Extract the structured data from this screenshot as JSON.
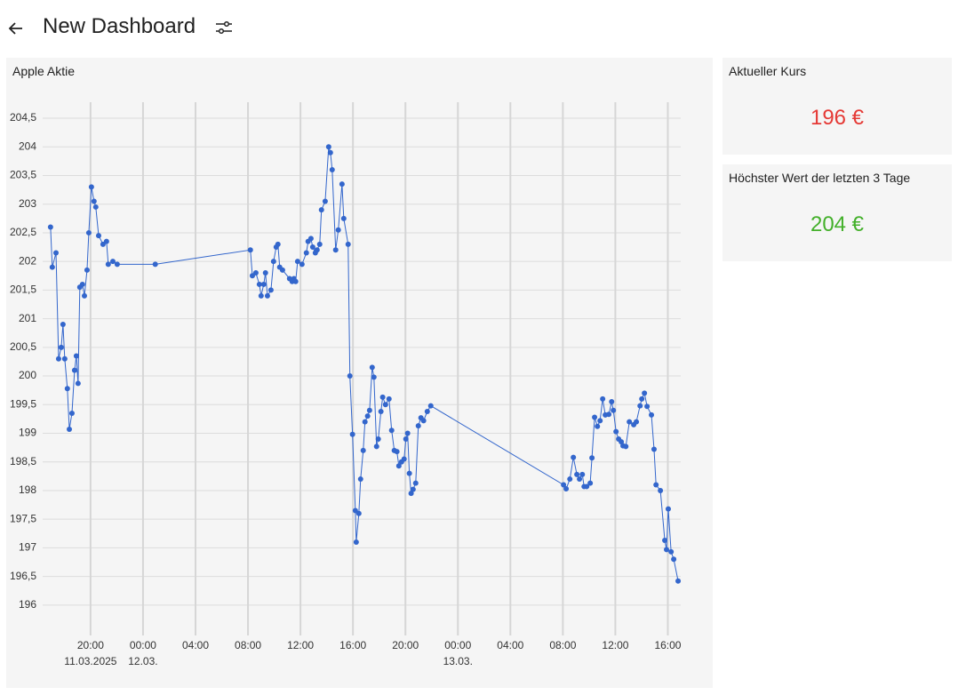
{
  "header": {
    "title": "New Dashboard"
  },
  "chart_data": {
    "type": "line",
    "title": "Apple Aktie",
    "color": "#3366cc",
    "grid": true,
    "x": [
      "2025-03-11T16:57",
      "2025-03-11T17:05",
      "2025-03-11T17:22",
      "2025-03-11T17:34",
      "2025-03-11T17:46",
      "2025-03-11T17:54",
      "2025-03-11T18:02",
      "2025-03-11T18:14",
      "2025-03-11T18:23",
      "2025-03-11T18:35",
      "2025-03-11T18:47",
      "2025-03-11T18:55",
      "2025-03-11T19:03",
      "2025-03-11T19:11",
      "2025-03-11T19:23",
      "2025-03-11T19:32",
      "2025-03-11T19:44",
      "2025-03-11T19:52",
      "2025-03-11T20:04",
      "2025-03-11T20:16",
      "2025-03-11T20:24",
      "2025-03-11T20:37",
      "2025-03-11T20:57",
      "2025-03-11T21:13",
      "2025-03-11T21:21",
      "2025-03-11T21:42",
      "2025-03-11T22:02",
      "2025-03-12T00:56",
      "2025-03-12T08:11",
      "2025-03-12T08:20",
      "2025-03-12T08:36",
      "2025-03-12T08:52",
      "2025-03-12T09:00",
      "2025-03-12T09:12",
      "2025-03-12T09:20",
      "2025-03-12T09:29",
      "2025-03-12T09:45",
      "2025-03-12T09:57",
      "2025-03-12T10:09",
      "2025-03-12T10:17",
      "2025-03-12T10:25",
      "2025-03-12T10:38",
      "2025-03-12T11:10",
      "2025-03-12T11:22",
      "2025-03-12T11:30",
      "2025-03-12T11:38",
      "2025-03-12T11:47",
      "2025-03-12T12:07",
      "2025-03-12T12:27",
      "2025-03-12T12:35",
      "2025-03-12T12:48",
      "2025-03-12T12:56",
      "2025-03-12T13:08",
      "2025-03-12T13:16",
      "2025-03-12T13:28",
      "2025-03-12T13:36",
      "2025-03-12T13:53",
      "2025-03-12T14:09",
      "2025-03-12T14:17",
      "2025-03-12T14:25",
      "2025-03-12T14:41",
      "2025-03-12T14:53",
      "2025-03-12T15:10",
      "2025-03-12T15:18",
      "2025-03-12T15:38",
      "2025-03-12T15:46",
      "2025-03-12T15:58",
      "2025-03-12T16:11",
      "2025-03-12T16:15",
      "2025-03-12T16:27",
      "2025-03-12T16:35",
      "2025-03-12T16:47",
      "2025-03-12T16:55",
      "2025-03-12T17:07",
      "2025-03-12T17:16",
      "2025-03-12T17:28",
      "2025-03-12T17:36",
      "2025-03-12T17:48",
      "2025-03-12T17:56",
      "2025-03-12T18:08",
      "2025-03-12T18:16",
      "2025-03-12T18:29",
      "2025-03-12T18:45",
      "2025-03-12T18:57",
      "2025-03-12T19:09",
      "2025-03-12T19:21",
      "2025-03-12T19:30",
      "2025-03-12T19:42",
      "2025-03-12T19:54",
      "2025-03-12T20:02",
      "2025-03-12T20:10",
      "2025-03-12T20:18",
      "2025-03-12T20:26",
      "2025-03-12T20:35",
      "2025-03-12T20:47",
      "2025-03-12T20:59",
      "2025-03-12T21:11",
      "2025-03-12T21:23",
      "2025-03-12T21:40",
      "2025-03-12T21:56",
      "2025-03-13T08:03",
      "2025-03-13T08:15",
      "2025-03-13T08:32",
      "2025-03-13T08:48",
      "2025-03-13T09:04",
      "2025-03-13T09:16",
      "2025-03-13T09:29",
      "2025-03-13T09:37",
      "2025-03-13T09:49",
      "2025-03-13T10:05",
      "2025-03-13T10:13",
      "2025-03-13T10:25",
      "2025-03-13T10:38",
      "2025-03-13T10:50",
      "2025-03-13T11:02",
      "2025-03-13T11:14",
      "2025-03-13T11:30",
      "2025-03-13T11:43",
      "2025-03-13T11:51",
      "2025-03-13T12:03",
      "2025-03-13T12:15",
      "2025-03-13T12:27",
      "2025-03-13T12:35",
      "2025-03-13T12:48",
      "2025-03-13T13:04",
      "2025-03-13T13:24",
      "2025-03-13T13:36",
      "2025-03-13T13:53",
      "2025-03-13T14:01",
      "2025-03-13T14:13",
      "2025-03-13T14:25",
      "2025-03-13T14:45",
      "2025-03-13T14:57",
      "2025-03-13T15:06",
      "2025-03-13T15:26",
      "2025-03-13T15:46",
      "2025-03-13T15:54",
      "2025-03-13T16:02",
      "2025-03-13T16:15",
      "2025-03-13T16:27",
      "2025-03-13T16:47"
    ],
    "values": [
      202.6,
      201.9,
      202.15,
      200.3,
      200.5,
      200.9,
      200.3,
      199.78,
      199.07,
      199.35,
      200.1,
      200.35,
      199.87,
      201.55,
      201.6,
      201.4,
      201.85,
      202.5,
      203.3,
      203.05,
      202.95,
      202.45,
      202.3,
      202.35,
      201.95,
      202.0,
      201.95,
      201.95,
      202.2,
      201.75,
      201.8,
      201.6,
      201.4,
      201.6,
      201.8,
      201.4,
      201.5,
      202.0,
      202.25,
      202.3,
      201.9,
      201.85,
      201.7,
      201.65,
      201.7,
      201.65,
      202.0,
      201.95,
      202.15,
      202.35,
      202.4,
      202.25,
      202.15,
      202.2,
      202.3,
      202.9,
      203.05,
      204.0,
      203.9,
      203.6,
      202.2,
      202.55,
      203.35,
      202.75,
      202.3,
      200.0,
      198.98,
      197.65,
      197.1,
      197.6,
      198.2,
      198.7,
      199.2,
      199.3,
      199.4,
      200.15,
      199.98,
      198.77,
      198.9,
      199.38,
      199.63,
      199.5,
      199.6,
      199.05,
      198.7,
      198.68,
      198.43,
      198.5,
      198.55,
      198.9,
      199.0,
      198.3,
      197.95,
      198.02,
      198.13,
      199.13,
      199.27,
      199.22,
      199.38,
      199.48,
      198.1,
      198.03,
      198.2,
      198.58,
      198.28,
      198.2,
      198.28,
      198.07,
      198.07,
      198.13,
      198.57,
      199.28,
      199.12,
      199.22,
      199.6,
      199.32,
      199.33,
      199.55,
      199.4,
      199.03,
      198.9,
      198.85,
      198.78,
      198.77,
      199.2,
      199.15,
      199.2,
      199.48,
      199.6,
      199.7,
      199.47,
      199.32,
      198.72,
      198.1,
      198.0,
      197.13,
      196.97,
      197.68,
      196.93,
      196.8,
      196.42
    ],
    "xlim": [
      "2025-03-11T16:21",
      "2025-03-13T16:59"
    ],
    "xticks": [
      {
        "value": "2025-03-11T20:00",
        "label": "20:00",
        "sublabel": "11.03.2025"
      },
      {
        "value": "2025-03-12T00:00",
        "label": "00:00",
        "sublabel": "12.03."
      },
      {
        "value": "2025-03-12T04:00",
        "label": "04:00"
      },
      {
        "value": "2025-03-12T08:00",
        "label": "08:00"
      },
      {
        "value": "2025-03-12T12:00",
        "label": "12:00"
      },
      {
        "value": "2025-03-12T16:00",
        "label": "16:00"
      },
      {
        "value": "2025-03-12T20:00",
        "label": "20:00"
      },
      {
        "value": "2025-03-13T00:00",
        "label": "00:00",
        "sublabel": "13.03."
      },
      {
        "value": "2025-03-13T04:00",
        "label": "04:00"
      },
      {
        "value": "2025-03-13T08:00",
        "label": "08:00"
      },
      {
        "value": "2025-03-13T12:00",
        "label": "12:00"
      },
      {
        "value": "2025-03-13T16:00",
        "label": "16:00"
      }
    ],
    "ylim": [
      195.47,
      204.78
    ],
    "yticks": [
      196,
      {
        "value": 196.5,
        "label": "196,5"
      },
      197,
      {
        "value": 197.5,
        "label": "197,5"
      },
      198,
      {
        "value": 198.5,
        "label": "198,5"
      },
      199,
      {
        "value": 199.5,
        "label": "199,5"
      },
      200,
      {
        "value": 200.5,
        "label": "200,5"
      },
      201,
      {
        "value": 201.5,
        "label": "201,5"
      },
      202,
      {
        "value": 202.5,
        "label": "202,5"
      },
      203,
      {
        "value": 203.5,
        "label": "203,5"
      },
      204,
      {
        "value": 204.5,
        "label": "204,5"
      }
    ]
  },
  "cards": [
    {
      "title": "Aktueller Kurs",
      "value": "196 €",
      "color": "#e53935"
    },
    {
      "title": "Höchster Wert der letzten 3 Tage",
      "value": "204 €",
      "color": "#43b02a"
    }
  ]
}
